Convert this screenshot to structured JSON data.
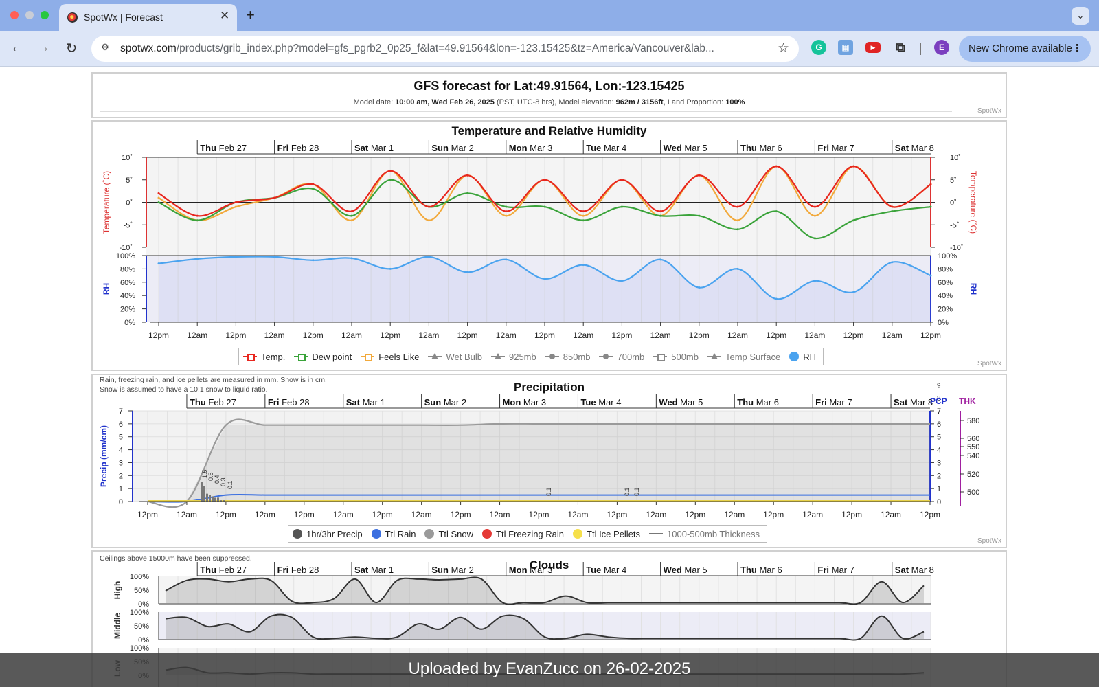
{
  "browser": {
    "tab_title": "SpotWx | Forecast",
    "url_host": "spotwx.com",
    "url_path": "/products/grib_index.php?model=gfs_pgrb2_0p25_f&lat=49.91564&lon=-123.15425&tz=America/Vancouver&lab...",
    "profile_initial": "E",
    "update_label": "New Chrome available"
  },
  "header": {
    "title": "GFS forecast for Lat:49.91564, Lon:-123.15425",
    "model_date_label": "Model date:",
    "model_date": "10:00 am, Wed Feb 26, 2025",
    "tz_note": "(PST, UTC-8 hrs), Model elevation:",
    "elevation": "962m / 3156ft",
    "land_label": ", Land Proportion:",
    "land_value": "100%",
    "brand": "SpotWx"
  },
  "days": [
    {
      "dow": "Thu",
      "date": "Feb 27"
    },
    {
      "dow": "Fri",
      "date": "Feb 28"
    },
    {
      "dow": "Sat",
      "date": "Mar 1"
    },
    {
      "dow": "Sun",
      "date": "Mar 2"
    },
    {
      "dow": "Mon",
      "date": "Mar 3"
    },
    {
      "dow": "Tue",
      "date": "Mar 4"
    },
    {
      "dow": "Wed",
      "date": "Mar 5"
    },
    {
      "dow": "Thu",
      "date": "Mar 6"
    },
    {
      "dow": "Fri",
      "date": "Mar 7"
    },
    {
      "dow": "Sat",
      "date": "Mar 8"
    }
  ],
  "time_ticks": [
    "12pm",
    "12am",
    "12pm",
    "12am",
    "12pm",
    "12am",
    "12pm",
    "12am",
    "12pm",
    "12am",
    "12pm",
    "12am",
    "12pm",
    "12am",
    "12pm",
    "12am",
    "12pm",
    "12am",
    "12pm",
    "12am",
    "12pm"
  ],
  "temp_panel": {
    "title": "Temperature and Relative Humidity",
    "temp_axis_label": "Temperature (˚C)",
    "temp_ticks": [
      "10˚",
      "5˚",
      "0˚",
      "-5˚",
      "-10˚"
    ],
    "rh_axis_label": "RH",
    "rh_ticks": [
      "100%",
      "80%",
      "60%",
      "40%",
      "20%",
      "0%"
    ],
    "brand": "SpotWx",
    "legend": [
      {
        "label": "Temp.",
        "color": "#e8261e",
        "marker": "sq",
        "off": false
      },
      {
        "label": "Dew point",
        "color": "#3aa33a",
        "marker": "sq",
        "off": false
      },
      {
        "label": "Feels Like",
        "color": "#f2a93b",
        "marker": "sq",
        "off": false
      },
      {
        "label": "Wet Bulb",
        "color": "#888888",
        "marker": "tri",
        "off": true
      },
      {
        "label": "925mb",
        "color": "#888888",
        "marker": "tri",
        "off": true
      },
      {
        "label": "850mb",
        "color": "#888888",
        "marker": "dot",
        "off": true
      },
      {
        "label": "700mb",
        "color": "#888888",
        "marker": "dot",
        "off": true
      },
      {
        "label": "500mb",
        "color": "#888888",
        "marker": "sq",
        "off": true
      },
      {
        "label": "Temp Surface",
        "color": "#888888",
        "marker": "tri",
        "off": true
      },
      {
        "label": "RH",
        "color": "#4aa3ef",
        "marker": "circ",
        "off": false
      }
    ]
  },
  "precip_panel": {
    "title": "Precipitation",
    "note_line1": "Rain, freezing rain, and ice pellets are measured in mm. Snow is in cm.",
    "note_line2": "Snow is assumed to have a 10:1 snow to liquid ratio.",
    "axis_label": "Precip (mm/cm)",
    "ticks": [
      "7",
      "6",
      "5",
      "4",
      "3",
      "2",
      "1",
      "0"
    ],
    "pcp_label": "PCP",
    "thk_label": "THK",
    "right_extra_ticks": [
      "9",
      "8"
    ],
    "thk_ticks": [
      "580",
      "560",
      "550",
      "540",
      "520",
      "500"
    ],
    "bar_labels": [
      "1.5",
      "0.6",
      "0.4",
      "0.3",
      "0.1",
      "0.1",
      "0.1",
      "0.1"
    ],
    "brand": "SpotWx",
    "legend": [
      {
        "label": "1hr/3hr Precip",
        "color": "#555555",
        "marker": "circ",
        "off": false
      },
      {
        "label": "Ttl Rain",
        "color": "#3b6fe0",
        "marker": "circ",
        "off": false
      },
      {
        "label": "Ttl Snow",
        "color": "#9a9a9a",
        "marker": "circ",
        "off": false
      },
      {
        "label": "Ttl Freezing Rain",
        "color": "#e53935",
        "marker": "circ",
        "off": false
      },
      {
        "label": "Ttl Ice Pellets",
        "color": "#f6e04a",
        "marker": "circ",
        "off": false
      },
      {
        "label": "1000-500mb Thickness",
        "color": "#777777",
        "marker": "line",
        "off": true
      }
    ]
  },
  "cloud_panel": {
    "title": "Clouds",
    "note": "Ceilings above 15000m have been suppressed.",
    "rows": [
      "High",
      "Middle",
      "Low"
    ],
    "ticks": [
      "100%",
      "50%",
      "0%"
    ]
  },
  "chart_data": [
    {
      "type": "line",
      "title": "Temperature and Relative Humidity",
      "ylabel": "Temperature (˚C)",
      "ylim": [
        -10,
        10
      ],
      "x": [
        "Wed 12pm",
        "Thu 12am",
        "Thu 12pm",
        "Fri 12am",
        "Fri 12pm",
        "Sat 12am",
        "Sat 12pm",
        "Sun 12am",
        "Sun 12pm",
        "Mon 12am",
        "Mon 12pm",
        "Tue 12am",
        "Tue 12pm",
        "Wed 12am",
        "Wed 12pm",
        "Thu 12am",
        "Thu 12pm",
        "Fri 12am",
        "Fri 12pm",
        "Sat 12am",
        "Sat 12pm"
      ],
      "series": [
        {
          "name": "Temp.",
          "color": "#e8261e",
          "values": [
            2,
            -3,
            0,
            1,
            4,
            -2,
            7,
            -1,
            6,
            -2,
            5,
            -2,
            5,
            -2,
            6,
            -1,
            8,
            -1,
            8,
            -1,
            4
          ]
        },
        {
          "name": "Dew point",
          "color": "#3aa33a",
          "values": [
            0,
            -4,
            0,
            1,
            3,
            -3,
            5,
            -1,
            2,
            -1,
            -1,
            -4,
            -1,
            -3,
            -3,
            -6,
            -2,
            -8,
            -4,
            -2,
            -1
          ]
        },
        {
          "name": "Feels Like",
          "color": "#f2a93b",
          "values": [
            1,
            -4,
            -1,
            1,
            4,
            -4,
            7,
            -4,
            6,
            -3,
            5,
            -3,
            5,
            -3,
            6,
            -4,
            8,
            -3,
            8,
            -1,
            4
          ]
        }
      ]
    },
    {
      "type": "area",
      "title": "RH",
      "ylim": [
        0,
        100
      ],
      "x": [
        "Wed 12pm",
        "Thu 12am",
        "Thu 12pm",
        "Fri 12am",
        "Fri 12pm",
        "Sat 12am",
        "Sat 12pm",
        "Sun 12am",
        "Sun 12pm",
        "Mon 12am",
        "Mon 12pm",
        "Tue 12am",
        "Tue 12pm",
        "Wed 12am",
        "Wed 12pm",
        "Thu 12am",
        "Thu 12pm",
        "Fri 12am",
        "Fri 12pm",
        "Sat 12am",
        "Sat 12pm"
      ],
      "series": [
        {
          "name": "RH",
          "color": "#4aa3ef",
          "values": [
            88,
            95,
            98,
            98,
            93,
            96,
            80,
            98,
            75,
            94,
            65,
            86,
            62,
            94,
            52,
            80,
            35,
            62,
            45,
            90,
            70
          ]
        }
      ]
    },
    {
      "type": "bar",
      "title": "Precipitation",
      "ylabel": "Precip (mm/cm)",
      "ylim": [
        0,
        7
      ],
      "bar_labels": [
        "1.5",
        "0.6",
        "0.4",
        "0.3",
        "0.1",
        "0.1",
        "0.1",
        "0.1"
      ],
      "series": [
        {
          "name": "Ttl Snow",
          "color": "#9a9a9a",
          "values": [
            0,
            0,
            5.9,
            5.9,
            5.9,
            5.9,
            5.9,
            5.9,
            5.9,
            6.0,
            6.0,
            6.0,
            6.0,
            6.0,
            6.0,
            6.0,
            6.0,
            6.0,
            6.0,
            6.0,
            6.0
          ]
        },
        {
          "name": "Ttl Rain",
          "color": "#3b6fe0",
          "values": [
            0,
            0,
            0.5,
            0.5,
            0.5,
            0.5,
            0.5,
            0.5,
            0.5,
            0.5,
            0.5,
            0.5,
            0.5,
            0.5,
            0.5,
            0.5,
            0.5,
            0.5,
            0.5,
            0.5,
            0.5
          ]
        }
      ]
    }
  ],
  "watermark": "Uploaded by EvanZucc on 26-02-2025"
}
